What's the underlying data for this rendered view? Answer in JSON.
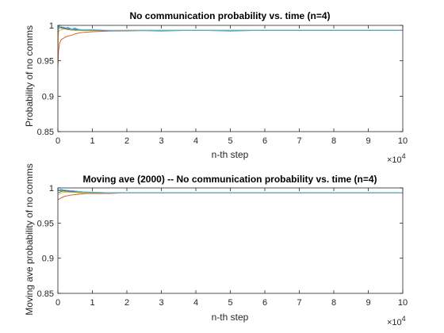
{
  "chart_data": [
    {
      "type": "line",
      "title": "No communication probability vs. time (n=4)",
      "xlabel": "n-th step",
      "ylabel": "Probability of no comms",
      "xlim": [
        0,
        100000
      ],
      "ylim": [
        0.85,
        1.0
      ],
      "x_exponent_label": "×10",
      "x_exponent": "4",
      "xticks": [
        "0",
        "1",
        "2",
        "3",
        "4",
        "5",
        "6",
        "7",
        "8",
        "9",
        "10"
      ],
      "yticks": [
        "0.85",
        "0.9",
        "0.95",
        "1"
      ],
      "grid": false,
      "series": [
        {
          "color": "#0072BD",
          "x": [
            0,
            200,
            500,
            1000,
            2000,
            3000,
            4000,
            5000,
            7000,
            10000,
            15000,
            20000,
            30000,
            40000,
            50000,
            60000,
            70000,
            80000,
            90000,
            100000
          ],
          "y": [
            0.985,
            0.995,
            0.997,
            0.998,
            0.996,
            0.997,
            0.995,
            0.996,
            0.993,
            0.994,
            0.992,
            0.993,
            0.992,
            0.993,
            0.992,
            0.993,
            0.993,
            0.993,
            0.993,
            0.993
          ]
        },
        {
          "color": "#D95319",
          "x": [
            0,
            200,
            500,
            1000,
            2000,
            3000,
            4000,
            5000,
            7000,
            10000,
            15000,
            20000,
            30000,
            40000,
            50000,
            60000,
            70000,
            80000,
            90000,
            100000
          ],
          "y": [
            0.94,
            0.965,
            0.975,
            0.98,
            0.983,
            0.985,
            0.986,
            0.988,
            0.99,
            0.991,
            0.992,
            0.992,
            0.993,
            0.993,
            0.993,
            0.993,
            0.993,
            0.993,
            0.993,
            0.993
          ]
        },
        {
          "color": "#EDB120",
          "x": [
            0,
            200,
            500,
            1000,
            2000,
            3000,
            4000,
            5000,
            7000,
            10000,
            15000,
            20000,
            30000,
            40000,
            50000,
            60000,
            70000,
            80000,
            90000,
            100000
          ],
          "y": [
            0.96,
            0.99,
            0.993,
            0.994,
            0.995,
            0.994,
            0.993,
            0.994,
            0.993,
            0.993,
            0.993,
            0.993,
            0.993,
            0.993,
            0.993,
            0.993,
            0.993,
            0.993,
            0.993,
            0.993
          ]
        },
        {
          "color": "#7E2F8E",
          "x": [
            0,
            200,
            500,
            1000,
            2000,
            3000,
            4000,
            5000,
            7000,
            10000,
            15000,
            20000,
            30000,
            40000,
            50000,
            60000,
            70000,
            80000,
            90000,
            100000
          ],
          "y": [
            1.0,
            0.999,
            0.998,
            0.997,
            0.996,
            0.995,
            0.994,
            0.994,
            0.993,
            0.993,
            0.992,
            0.993,
            0.993,
            0.993,
            0.993,
            0.993,
            0.993,
            0.993,
            0.993,
            0.993
          ]
        },
        {
          "color": "#77AC30",
          "x": [
            0,
            200,
            500,
            1000,
            2000,
            3000,
            4000,
            5000,
            7000,
            10000,
            15000,
            20000,
            30000,
            40000,
            50000,
            60000,
            70000,
            80000,
            90000,
            100000
          ],
          "y": [
            1.0,
            0.998,
            0.997,
            0.996,
            0.995,
            0.994,
            0.994,
            0.993,
            0.993,
            0.993,
            0.993,
            0.993,
            0.993,
            0.993,
            0.993,
            0.993,
            0.993,
            0.993,
            0.993,
            0.993
          ]
        },
        {
          "color": "#4DBEEE",
          "x": [
            0,
            200,
            500,
            1000,
            2000,
            3000,
            4000,
            5000,
            7000,
            10000,
            15000,
            20000,
            30000,
            40000,
            50000,
            60000,
            70000,
            80000,
            90000,
            100000
          ],
          "y": [
            0.99,
            0.996,
            0.998,
            0.998,
            0.997,
            0.996,
            0.995,
            0.995,
            0.994,
            0.994,
            0.993,
            0.993,
            0.993,
            0.993,
            0.993,
            0.993,
            0.993,
            0.993,
            0.993,
            0.993
          ]
        }
      ]
    },
    {
      "type": "line",
      "title": "Moving ave (2000) -- No communication probability vs. time (n=4)",
      "xlabel": "n-th step",
      "ylabel": "Moving ave probability of no comms",
      "xlim": [
        0,
        100000
      ],
      "ylim": [
        0.85,
        1.0
      ],
      "x_exponent_label": "×10",
      "x_exponent": "4",
      "xticks": [
        "0",
        "1",
        "2",
        "3",
        "4",
        "5",
        "6",
        "7",
        "8",
        "9",
        "10"
      ],
      "yticks": [
        "0.85",
        "0.9",
        "0.95",
        "1"
      ],
      "grid": false,
      "series": [
        {
          "color": "#0072BD",
          "x": [
            0,
            1000,
            2000,
            4000,
            6000,
            8000,
            10000,
            15000,
            20000,
            30000,
            40000,
            50000,
            60000,
            70000,
            80000,
            90000,
            100000
          ],
          "y": [
            0.993,
            0.995,
            0.996,
            0.996,
            0.995,
            0.994,
            0.994,
            0.993,
            0.993,
            0.993,
            0.993,
            0.993,
            0.993,
            0.993,
            0.993,
            0.993,
            0.993
          ]
        },
        {
          "color": "#D95319",
          "x": [
            0,
            1000,
            2000,
            4000,
            6000,
            8000,
            10000,
            15000,
            20000,
            30000,
            40000,
            50000,
            60000,
            70000,
            80000,
            90000,
            100000
          ],
          "y": [
            0.983,
            0.986,
            0.988,
            0.99,
            0.991,
            0.992,
            0.992,
            0.992,
            0.993,
            0.993,
            0.993,
            0.993,
            0.993,
            0.993,
            0.993,
            0.993,
            0.993
          ]
        },
        {
          "color": "#EDB120",
          "x": [
            0,
            1000,
            2000,
            4000,
            6000,
            8000,
            10000,
            15000,
            20000,
            30000,
            40000,
            50000,
            60000,
            70000,
            80000,
            90000,
            100000
          ],
          "y": [
            0.99,
            0.993,
            0.994,
            0.994,
            0.993,
            0.993,
            0.993,
            0.993,
            0.993,
            0.993,
            0.993,
            0.993,
            0.993,
            0.993,
            0.993,
            0.993,
            0.993
          ]
        },
        {
          "color": "#7E2F8E",
          "x": [
            0,
            1000,
            2000,
            4000,
            6000,
            8000,
            10000,
            15000,
            20000,
            30000,
            40000,
            50000,
            60000,
            70000,
            80000,
            90000,
            100000
          ],
          "y": [
            0.997,
            0.997,
            0.996,
            0.995,
            0.994,
            0.994,
            0.993,
            0.993,
            0.993,
            0.993,
            0.993,
            0.993,
            0.993,
            0.993,
            0.993,
            0.993,
            0.993
          ]
        },
        {
          "color": "#77AC30",
          "x": [
            0,
            1000,
            2000,
            4000,
            6000,
            8000,
            10000,
            15000,
            20000,
            30000,
            40000,
            50000,
            60000,
            70000,
            80000,
            90000,
            100000
          ],
          "y": [
            0.996,
            0.996,
            0.995,
            0.994,
            0.994,
            0.993,
            0.993,
            0.993,
            0.993,
            0.993,
            0.993,
            0.993,
            0.993,
            0.993,
            0.993,
            0.993,
            0.993
          ]
        },
        {
          "color": "#4DBEEE",
          "x": [
            0,
            1000,
            2000,
            4000,
            6000,
            8000,
            10000,
            15000,
            20000,
            30000,
            40000,
            50000,
            60000,
            70000,
            80000,
            90000,
            100000
          ],
          "y": [
            0.997,
            0.998,
            0.997,
            0.996,
            0.995,
            0.994,
            0.994,
            0.993,
            0.993,
            0.993,
            0.993,
            0.993,
            0.993,
            0.993,
            0.993,
            0.993,
            0.993
          ]
        }
      ]
    }
  ]
}
